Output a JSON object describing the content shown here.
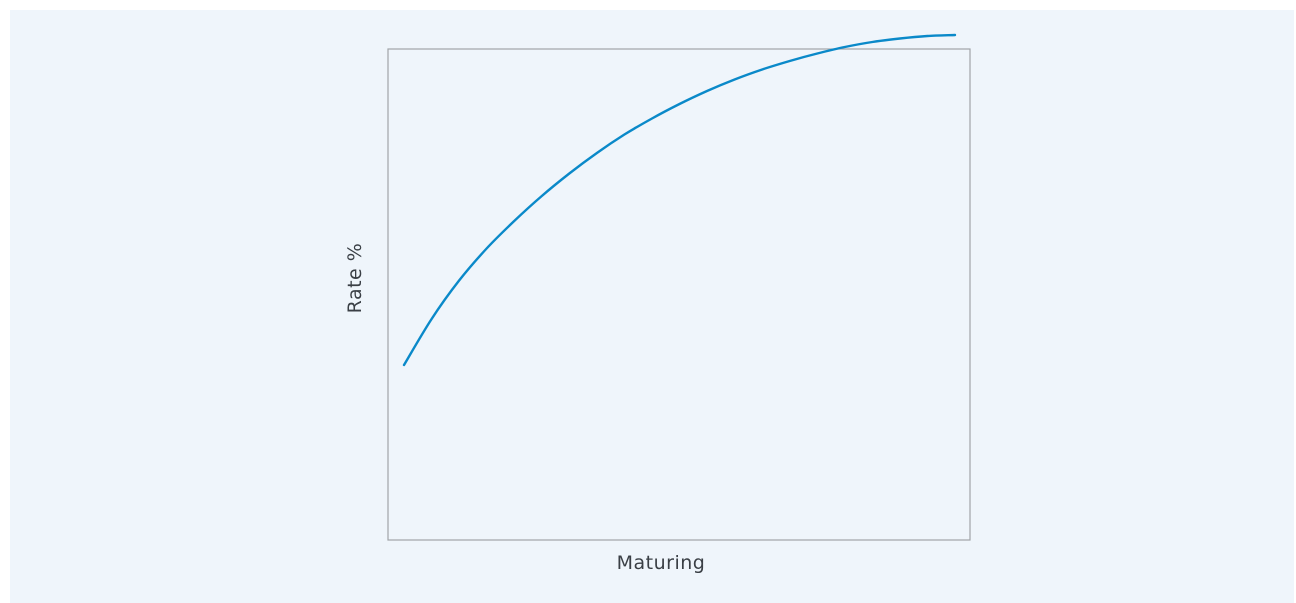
{
  "chart_data": {
    "type": "line",
    "title": "",
    "xlabel": "Maturing",
    "ylabel": "Rate %",
    "grid": false,
    "legend": "none",
    "xlim": [
      0,
      100
    ],
    "ylim": [
      0,
      100
    ],
    "series": [
      {
        "color": "#0a89c9",
        "x": [
          0,
          5,
          10,
          15,
          20,
          25,
          30,
          35,
          40,
          45,
          50,
          55,
          60,
          65,
          70,
          75,
          80,
          85,
          90,
          95,
          100
        ],
        "y": [
          33,
          42.2,
          49.9,
          56.3,
          61.8,
          66.8,
          71.3,
          75.4,
          79.1,
          82.3,
          85.2,
          87.8,
          90.1,
          92.1,
          93.8,
          95.3,
          96.6,
          97.6,
          98.3,
          98.8,
          99
        ]
      }
    ]
  },
  "colors": {
    "background": "#eff5fb",
    "frame": "#a0a4a8",
    "line": "#0a89c9",
    "text": "#3a3f45"
  }
}
